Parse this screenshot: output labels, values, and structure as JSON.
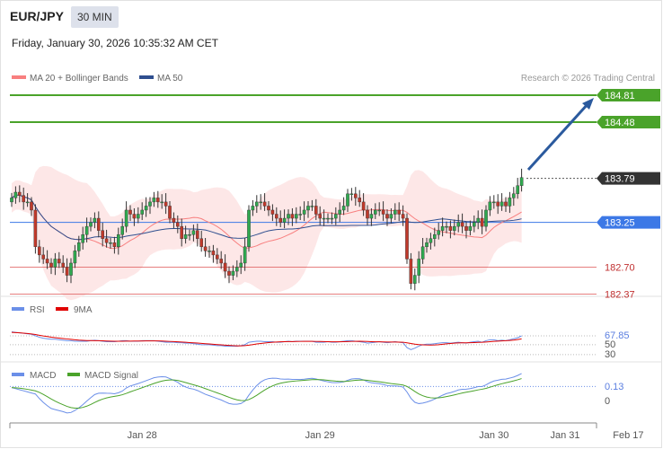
{
  "header": {
    "pair": "EUR/JPY",
    "timeframe": "30 MIN",
    "datetime": "Friday, January 30, 2026 10:35:32 AM CET"
  },
  "chart_data": [
    {
      "type": "candlestick",
      "panel": "price",
      "legend": [
        {
          "name": "MA 20 + Bollinger Bands",
          "color": "#f87f7f"
        },
        {
          "name": "MA 50",
          "color": "#2f4f8f"
        }
      ],
      "copyright": "Research © 2026 Trading Central",
      "ylim": [
        182.0,
        185.0
      ],
      "current_price": 183.79,
      "levels": [
        {
          "value": 184.81,
          "label": "184.81",
          "type": "resistance",
          "color": "#4aa32a"
        },
        {
          "value": 184.48,
          "label": "184.48",
          "type": "resistance",
          "color": "#4aa32a"
        },
        {
          "value": 183.25,
          "label": "183.25",
          "type": "pivot",
          "color": "#3c78e6"
        },
        {
          "value": 182.7,
          "label": "182.70",
          "type": "support",
          "color": "#e06060"
        },
        {
          "value": 182.37,
          "label": "182.37",
          "type": "support",
          "color": "#e06060"
        }
      ],
      "arrow": {
        "from": [
          144,
          183.8
        ],
        "to": [
          170,
          184.75
        ],
        "color": "#2b5a9e"
      },
      "candles_close": [
        183.55,
        183.62,
        183.58,
        183.5,
        183.5,
        183.4,
        182.95,
        182.85,
        182.8,
        182.75,
        182.7,
        182.8,
        182.75,
        182.7,
        182.6,
        182.75,
        182.9,
        183.0,
        183.1,
        183.2,
        183.25,
        183.3,
        183.15,
        183.05,
        183.0,
        183.0,
        182.95,
        183.1,
        183.2,
        183.4,
        183.35,
        183.3,
        183.35,
        183.4,
        183.45,
        183.5,
        183.55,
        183.5,
        183.5,
        183.45,
        183.3,
        183.25,
        183.2,
        183.05,
        183.1,
        183.1,
        183.15,
        183.05,
        182.95,
        182.9,
        182.9,
        182.85,
        182.8,
        182.75,
        182.65,
        182.6,
        182.65,
        182.7,
        182.75,
        182.95,
        183.4,
        183.45,
        183.5,
        183.5,
        183.45,
        183.4,
        183.35,
        183.3,
        183.25,
        183.3,
        183.35,
        183.3,
        183.35,
        183.35,
        183.4,
        183.45,
        183.45,
        183.35,
        183.3,
        183.3,
        183.3,
        183.3,
        183.35,
        183.4,
        183.45,
        183.6,
        183.6,
        183.55,
        183.5,
        183.4,
        183.3,
        183.35,
        183.4,
        183.4,
        183.35,
        183.3,
        183.35,
        183.4,
        183.35,
        183.3,
        182.8,
        182.5,
        182.6,
        182.8,
        182.95,
        183.0,
        183.05,
        183.1,
        183.15,
        183.2,
        183.2,
        183.15,
        183.2,
        183.25,
        183.2,
        183.15,
        183.2,
        183.25,
        183.3,
        183.2,
        183.4,
        183.5,
        183.5,
        183.45,
        183.5,
        183.45,
        183.55,
        183.6,
        183.7,
        183.8
      ],
      "candle_x_start": 0,
      "x_ticks": [
        {
          "index": 33,
          "label": "Jan 28"
        },
        {
          "index": 78,
          "label": "Jan 29"
        },
        {
          "index": 122,
          "label": "Jan 30"
        },
        {
          "index": 140,
          "label": "Jan 31"
        },
        {
          "index": 156,
          "label": "Feb 17"
        }
      ],
      "x_domain": [
        0,
        160
      ]
    },
    {
      "type": "line",
      "panel": "rsi",
      "series": [
        {
          "name": "RSI",
          "color": "#6b8fe8"
        },
        {
          "name": "9MA",
          "color": "#e00000"
        }
      ],
      "rsi_value": 67.85,
      "y_ticks": [
        "50",
        "30"
      ],
      "ylim": [
        20,
        85
      ],
      "rsi_values": [
        76,
        75,
        74,
        73,
        72,
        71,
        68,
        65,
        63,
        62,
        61,
        61,
        60,
        59,
        58,
        58,
        57,
        57,
        57,
        57,
        58,
        59,
        58,
        57,
        56,
        56,
        56,
        57,
        58,
        58,
        57,
        57,
        57,
        58,
        58,
        58,
        58,
        57,
        56,
        55,
        55,
        55,
        54,
        54,
        53,
        53,
        52,
        51,
        50,
        50,
        50,
        49,
        48,
        48,
        47,
        47,
        47,
        47,
        48,
        50,
        55,
        56,
        57,
        57,
        56,
        56,
        56,
        55,
        55,
        56,
        57,
        56,
        57,
        57,
        57,
        57,
        57,
        55,
        55,
        55,
        56,
        55,
        55,
        56,
        57,
        58,
        58,
        57,
        56,
        55,
        53,
        54,
        55,
        56,
        55,
        54,
        55,
        56,
        55,
        54,
        44,
        40,
        43,
        47,
        50,
        51,
        51,
        52,
        53,
        54,
        54,
        53,
        54,
        55,
        54,
        53,
        55,
        56,
        57,
        55,
        58,
        60,
        60,
        58,
        59,
        58,
        60,
        62,
        64,
        67.85
      ],
      "ma_values": [
        75,
        74.5,
        74,
        73.4,
        72.7,
        71.8,
        70.5,
        69,
        67.6,
        66.4,
        65.2,
        64.2,
        63.3,
        62.4,
        61.6,
        60.8,
        60,
        59.3,
        58.8,
        58.4,
        58.2,
        58.1,
        58,
        57.8,
        57.5,
        57.2,
        57,
        56.9,
        57,
        57.1,
        57.2,
        57.3,
        57.4,
        57.5,
        57.6,
        57.7,
        57.7,
        57.6,
        57.3,
        57,
        56.6,
        56.2,
        55.8,
        55.3,
        54.8,
        54.3,
        53.8,
        53.2,
        52.6,
        52,
        51.4,
        50.8,
        50.2,
        49.6,
        49,
        48.5,
        48,
        47.7,
        47.6,
        48,
        49,
        50.2,
        51.4,
        52.5,
        53.4,
        54.2,
        54.8,
        55.3,
        55.7,
        56,
        56.2,
        56.3,
        56.5,
        56.6,
        56.7,
        56.8,
        56.8,
        56.6,
        56.4,
        56.2,
        56,
        55.9,
        55.8,
        55.9,
        56,
        56.3,
        56.6,
        56.8,
        56.9,
        56.7,
        56.4,
        56.1,
        55.9,
        55.8,
        55.6,
        55.4,
        55.3,
        55.3,
        55.2,
        55,
        53.8,
        52.3,
        51.1,
        50.2,
        49.7,
        49.4,
        49.3,
        49.5,
        50,
        50.8,
        51.7,
        52.5,
        53,
        53.6,
        53.8,
        53.8,
        54,
        54.3,
        54.7,
        54.8,
        55.4,
        56.1,
        56.8,
        57.2,
        57.7,
        58,
        58.6,
        59.3,
        60.3,
        61.8
      ]
    },
    {
      "type": "line",
      "panel": "macd",
      "series": [
        {
          "name": "MACD",
          "color": "#6b8fe8"
        },
        {
          "name": "MACD Signal",
          "color": "#4aa32a"
        }
      ],
      "macd_value": 0.13,
      "y_ticks": [
        "0.13",
        "0"
      ],
      "ylim": [
        -0.45,
        0.25
      ]
    }
  ]
}
